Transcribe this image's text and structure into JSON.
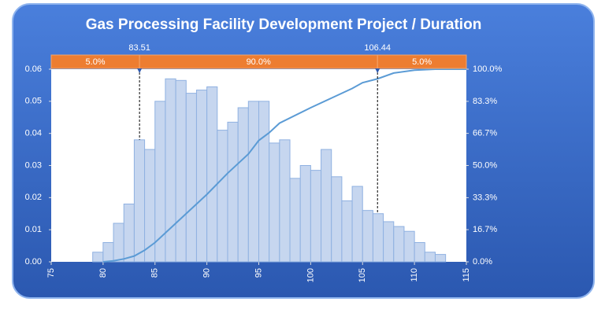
{
  "chart_data": {
    "type": "histogram",
    "title": "Gas Processing Facility Development Project / Duration",
    "bins": [
      75,
      76,
      77,
      78,
      79,
      80,
      81,
      82,
      83,
      84,
      85,
      86,
      87,
      88,
      89,
      90,
      91,
      92,
      93,
      94,
      95,
      96,
      97,
      98,
      99,
      100,
      101,
      102,
      103,
      104,
      105,
      106,
      107,
      108,
      109,
      110,
      111,
      112,
      113
    ],
    "values": [
      0,
      0,
      0,
      0,
      0.003,
      0.006,
      0.012,
      0.018,
      0.038,
      0.035,
      0.05,
      0.057,
      0.0565,
      0.0525,
      0.0535,
      0.0545,
      0.041,
      0.0435,
      0.048,
      0.05,
      0.05,
      0.037,
      0.038,
      0.026,
      0.03,
      0.0285,
      0.035,
      0.0265,
      0.019,
      0.0235,
      0.016,
      0.015,
      0.0125,
      0.011,
      0.0095,
      0.006,
      0.003,
      0.0023
    ],
    "color": "#c6d6ef",
    "edge_color": "#8fb1e1",
    "xlim": [
      75,
      115
    ],
    "xticks": [
      75,
      80,
      85,
      90,
      95,
      100,
      105,
      110,
      115
    ],
    "ylim": [
      0,
      0.06
    ],
    "yticks": [
      {
        "value": 0,
        "label": "0.00"
      },
      0.01,
      0.02,
      0.03,
      0.04,
      0.05,
      0.06
    ],
    "y2lim": [
      0,
      100
    ],
    "y2ticks": [
      {
        "value": 0,
        "label": "0.0%"
      },
      {
        "value": 16.7,
        "label": "16.7%"
      },
      {
        "value": 33.3,
        "label": "33.3%"
      },
      {
        "value": 50,
        "label": "50.0%"
      },
      {
        "value": 66.7,
        "label": "66.7%"
      },
      {
        "value": 83.3,
        "label": "83.3%"
      },
      {
        "value": 100,
        "label": "100.0%"
      }
    ],
    "cumulative": {
      "type": "line",
      "axis": "y2",
      "color": "#5b9bd5",
      "x": [
        80,
        81,
        82,
        83,
        84,
        85,
        86,
        88,
        90,
        92,
        94,
        95,
        96,
        97,
        100,
        102,
        104,
        105,
        106.44,
        108,
        110,
        112,
        115
      ],
      "values": [
        0,
        0.5,
        1.5,
        3,
        6,
        10,
        15,
        25,
        35,
        46,
        56,
        63,
        67,
        72,
        80,
        85,
        90,
        93,
        95,
        98,
        99.5,
        100,
        100
      ]
    },
    "markers": [
      83.51,
      106.44
    ],
    "band_values": [
      5,
      90,
      5
    ],
    "band_value_labels": [
      "5.0%",
      "90.0%",
      "5.0%"
    ],
    "band_color": "#ed7d31"
  }
}
